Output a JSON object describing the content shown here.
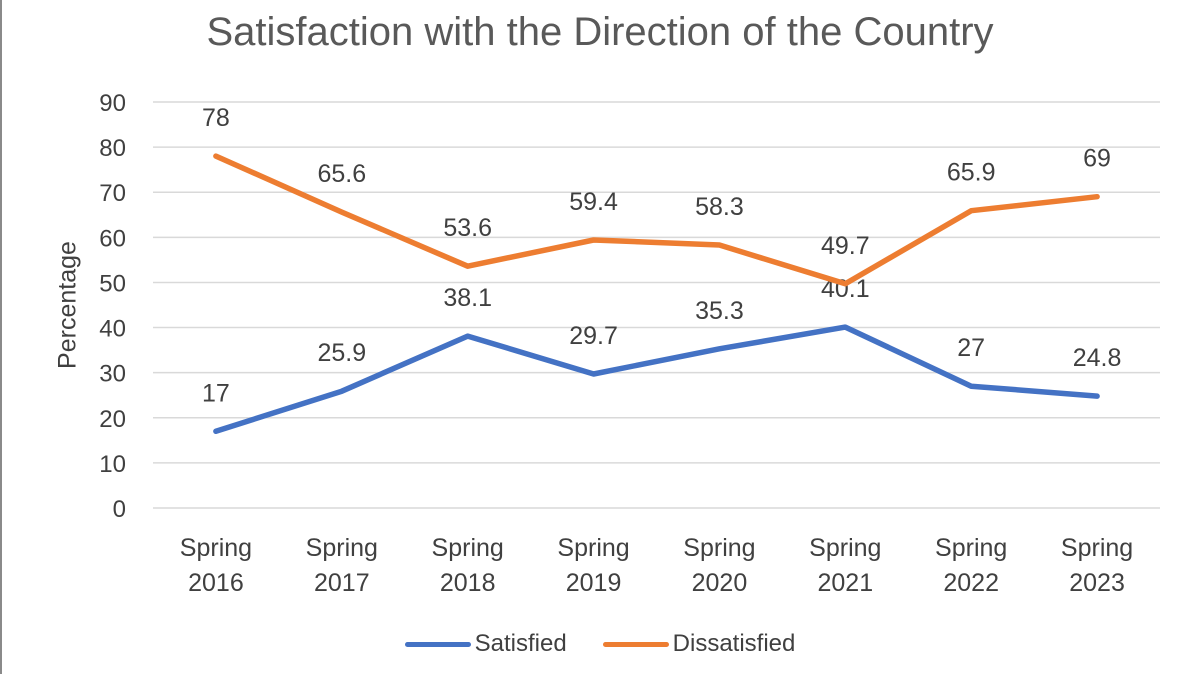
{
  "chart_data": {
    "type": "line",
    "title": "Satisfaction with the Direction of the Country",
    "xlabel": "",
    "ylabel": "Percentage",
    "ylim": [
      0,
      90
    ],
    "yticks": [
      0,
      10,
      20,
      30,
      40,
      50,
      60,
      70,
      80,
      90
    ],
    "grid": true,
    "legend_position": "bottom",
    "categories": [
      [
        "Spring",
        "2016"
      ],
      [
        "Spring",
        "2017"
      ],
      [
        "Spring",
        "2018"
      ],
      [
        "Spring",
        "2019"
      ],
      [
        "Spring",
        "2020"
      ],
      [
        "Spring",
        "2021"
      ],
      [
        "Spring",
        "2022"
      ],
      [
        "Spring",
        "2023"
      ]
    ],
    "series": [
      {
        "name": "Satisfied",
        "color": "#4472C4",
        "values": [
          17,
          25.9,
          38.1,
          29.7,
          35.3,
          40.1,
          27,
          24.8
        ],
        "labels": [
          "17",
          "25.9",
          "38.1",
          "29.7",
          "35.3",
          "40.1",
          "27",
          "24.8"
        ]
      },
      {
        "name": "Dissatisfied",
        "color": "#ED7D31",
        "values": [
          78,
          65.6,
          53.6,
          59.4,
          58.3,
          49.7,
          65.9,
          69
        ],
        "labels": [
          "78",
          "65.6",
          "53.6",
          "59.4",
          "58.3",
          "49.7",
          "65.9",
          "69"
        ]
      }
    ]
  }
}
